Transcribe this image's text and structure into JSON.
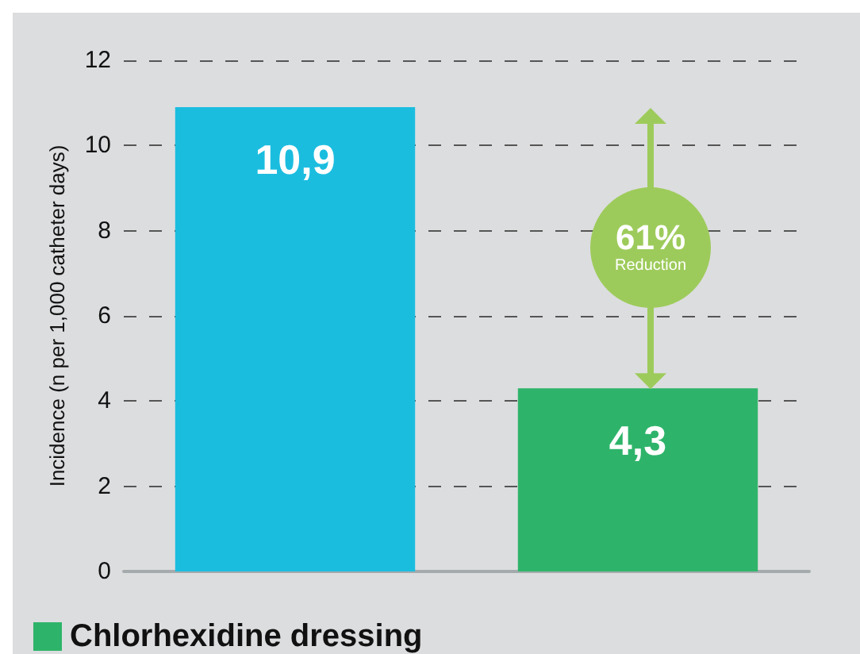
{
  "chart_data": {
    "type": "bar",
    "ylabel": "Incidence (n per 1,000 catheter days)",
    "categories": [
      null,
      null
    ],
    "stacked": true,
    "series": [
      {
        "color": "#1bbddf",
        "values": [
          10.9,
          null
        ],
        "value_labels": [
          "10,9",
          null
        ]
      },
      {
        "name": "Chlorhexidine dressing",
        "color": "#2eb46a",
        "values": [
          null,
          4.3
        ],
        "value_labels": [
          null,
          "4,3"
        ]
      }
    ],
    "ylim": [
      0,
      12
    ],
    "yticks": [
      0,
      2,
      4,
      6,
      8,
      10,
      12
    ],
    "grid": "y",
    "legend": "bottom left",
    "annotations": [
      "61%",
      "Reduction"
    ]
  }
}
